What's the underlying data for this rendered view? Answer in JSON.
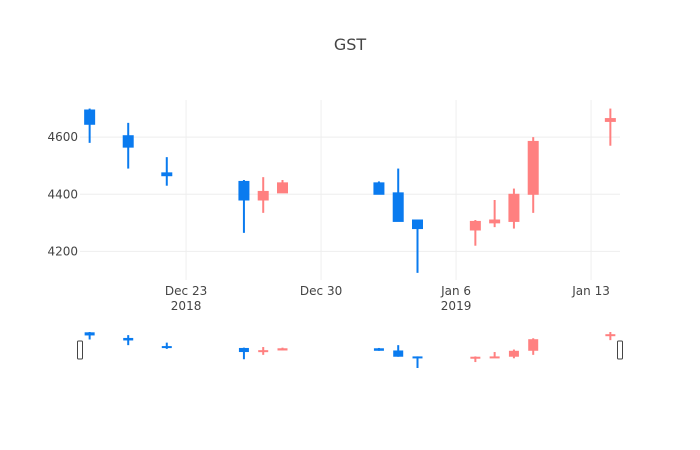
{
  "chart_data": {
    "type": "candlestick",
    "title": "GST",
    "ylim": [
      4100,
      4730
    ],
    "y_ticks": [
      4200,
      4400,
      4600
    ],
    "y_tick_labels": [
      "4200",
      "4400",
      "4600"
    ],
    "x_ticks": [
      {
        "date": "2018-12-23",
        "label": "Dec 23",
        "sublabel": "2018"
      },
      {
        "date": "2018-12-30",
        "label": "Dec 30",
        "sublabel": ""
      },
      {
        "date": "2019-01-06",
        "label": "Jan 6",
        "sublabel": "2019"
      },
      {
        "date": "2019-01-13",
        "label": "Jan 13",
        "sublabel": ""
      }
    ],
    "xlim": [
      "2018-12-17T12:00",
      "2019-01-14T12:00"
    ],
    "increasing_color": "#ff8080",
    "decreasing_color": "#0a7bef",
    "candles": [
      {
        "date": "2018-12-18",
        "open": 4695,
        "high": 4700,
        "low": 4580,
        "close": 4645
      },
      {
        "date": "2018-12-20",
        "open": 4605,
        "high": 4650,
        "low": 4490,
        "close": 4565
      },
      {
        "date": "2018-12-22",
        "open": 4475,
        "high": 4530,
        "low": 4430,
        "close": 4465
      },
      {
        "date": "2018-12-26",
        "open": 4445,
        "high": 4450,
        "low": 4265,
        "close": 4380
      },
      {
        "date": "2018-12-27",
        "open": 4380,
        "high": 4460,
        "low": 4335,
        "close": 4410
      },
      {
        "date": "2018-12-28",
        "open": 4405,
        "high": 4450,
        "low": 4405,
        "close": 4440
      },
      {
        "date": "2019-01-02",
        "open": 4440,
        "high": 4445,
        "low": 4400,
        "close": 4400
      },
      {
        "date": "2019-01-03",
        "open": 4405,
        "high": 4490,
        "low": 4305,
        "close": 4305
      },
      {
        "date": "2019-01-04",
        "open": 4310,
        "high": 4310,
        "low": 4125,
        "close": 4280
      },
      {
        "date": "2019-01-07",
        "open": 4275,
        "high": 4310,
        "low": 4220,
        "close": 4305
      },
      {
        "date": "2019-01-08",
        "open": 4300,
        "high": 4380,
        "low": 4285,
        "close": 4310
      },
      {
        "date": "2019-01-09",
        "open": 4305,
        "high": 4420,
        "low": 4280,
        "close": 4400
      },
      {
        "date": "2019-01-10",
        "open": 4400,
        "high": 4600,
        "low": 4335,
        "close": 4585
      },
      {
        "date": "2019-01-14",
        "open": 4655,
        "high": 4700,
        "low": 4570,
        "close": 4665
      }
    ],
    "rangeslider": true
  }
}
